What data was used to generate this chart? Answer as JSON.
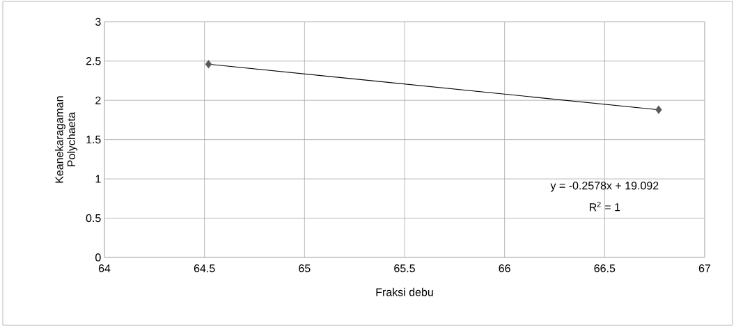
{
  "chart_data": {
    "type": "scatter",
    "xlabel": "Fraksi debu",
    "ylabel": "Keanekaragaman Polychaeta",
    "xlim": [
      64,
      67
    ],
    "xticks": [
      64,
      64.5,
      65,
      65.5,
      66,
      66.5,
      67
    ],
    "ylim": [
      0,
      3
    ],
    "yticks": [
      0,
      0.5,
      1,
      1.5,
      2,
      2.5,
      3
    ],
    "grid": true,
    "x": [
      64.52,
      66.77
    ],
    "series": [
      {
        "type": "line",
        "values": [
          2.46,
          1.88
        ],
        "color": "#000000",
        "marker": "none"
      },
      {
        "values": [
          2.46,
          1.88
        ],
        "color": "#595959",
        "marker": "diamond"
      }
    ],
    "annotations": [
      "y = -0.2578x + 19.092",
      "R$^{2}$ = 1"
    ]
  }
}
